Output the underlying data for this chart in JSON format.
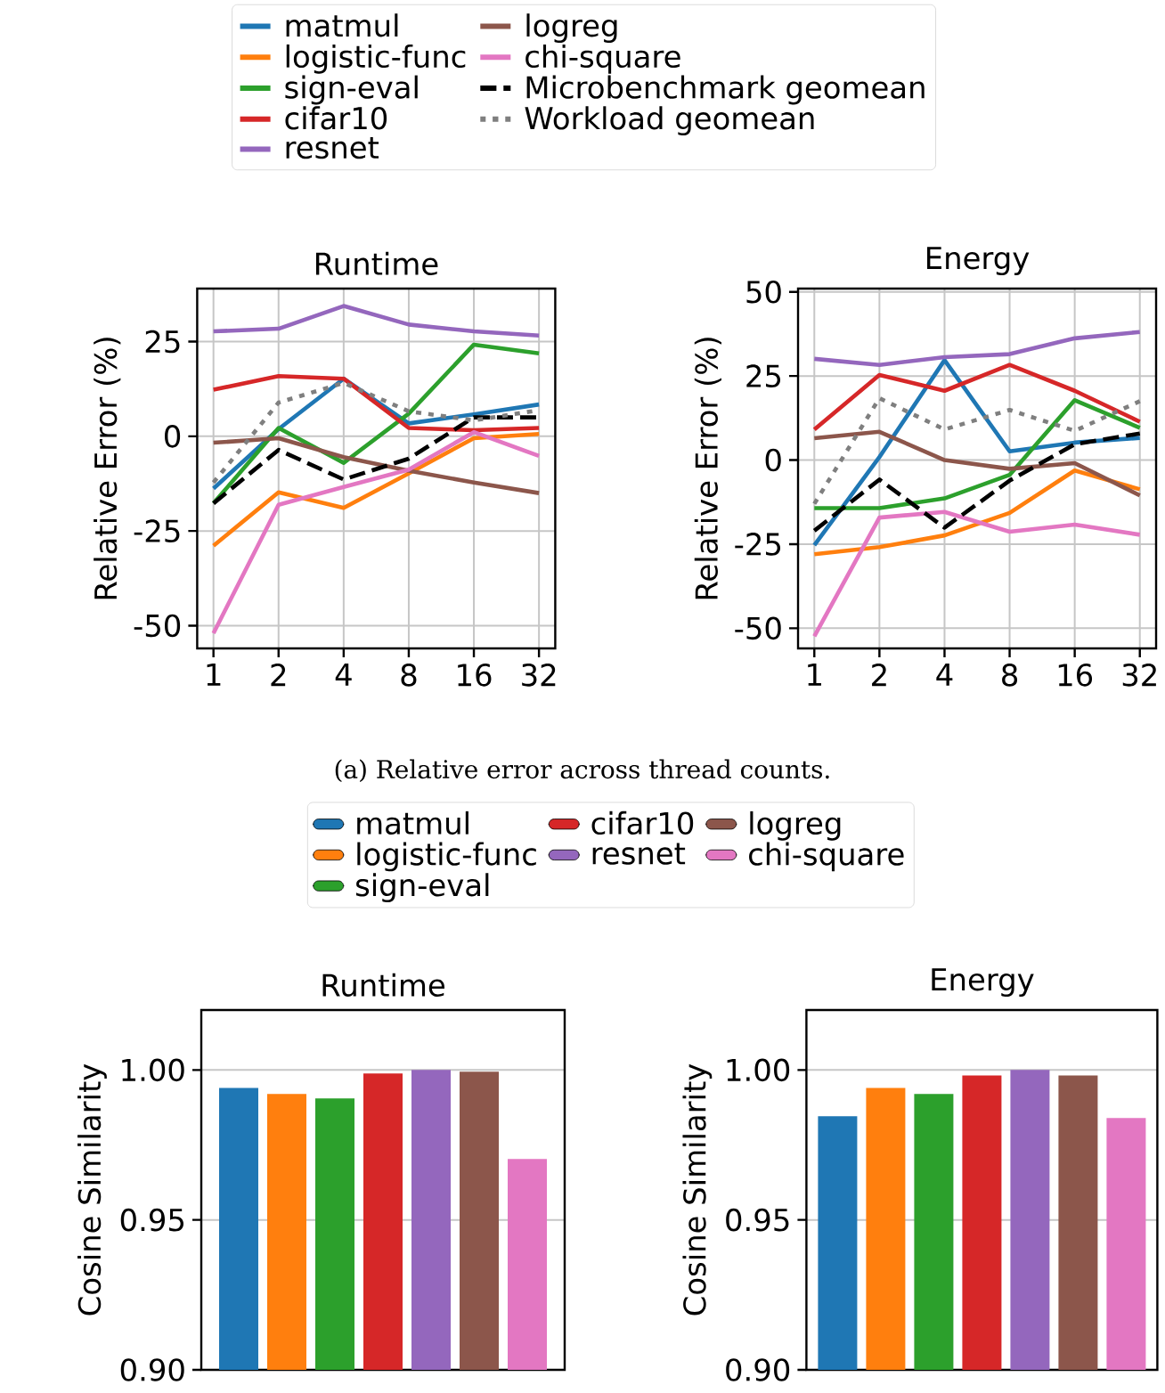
{
  "chart_data": [
    {
      "type": "line",
      "title": "Runtime",
      "ylabel": "Relative Error (%)",
      "categories": [
        "1",
        "2",
        "4",
        "8",
        "16",
        "32"
      ],
      "ylim": [
        -56,
        39
      ],
      "yticks": [
        -50,
        -25,
        0,
        25
      ],
      "grid": true,
      "legend": "top",
      "annotations": [
        "(a) Relative error across thread counts."
      ],
      "series": [
        {
          "name": "matmul",
          "color": "#1f77b4",
          "values": [
            -13.8,
            1.9,
            15.2,
            3.4,
            5.8,
            8.4
          ]
        },
        {
          "name": "logistic-func",
          "color": "#ff7f0e",
          "values": [
            -28.9,
            -14.8,
            -18.9,
            -9.8,
            -0.5,
            0.6
          ]
        },
        {
          "name": "sign-eval",
          "color": "#2ca02c",
          "values": [
            -17.7,
            2.2,
            -7,
            6,
            24.2,
            21.9
          ]
        },
        {
          "name": "cifar10",
          "color": "#d62728",
          "values": [
            12.3,
            15.9,
            15.2,
            2.2,
            1.6,
            2.2
          ]
        },
        {
          "name": "resnet",
          "color": "#9467bd",
          "values": [
            27.7,
            28.4,
            34.4,
            29.5,
            27.7,
            26.6
          ]
        },
        {
          "name": "logreg",
          "color": "#8c564b",
          "values": [
            -1.7,
            -0.5,
            -5.5,
            -9.1,
            -12.2,
            -15
          ]
        },
        {
          "name": "chi-square",
          "color": "#e377c2",
          "values": [
            -52,
            -18.1,
            -13.4,
            -8.8,
            1.1,
            -5.2
          ]
        },
        {
          "name": "Microbenchmark geomean",
          "color": "#000000",
          "line_style": "dashed",
          "values": [
            -17.7,
            -3.6,
            -11.4,
            -5.9,
            5,
            5
          ]
        },
        {
          "name": "Workload geomean",
          "color": "#7f7f7f",
          "line_style": "dotted",
          "values": [
            -12.2,
            8.9,
            14.1,
            6.6,
            4.2,
            6.9
          ]
        }
      ]
    },
    {
      "type": "line",
      "title": "Energy",
      "ylabel": "Relative Error (%)",
      "categories": [
        "1",
        "2",
        "4",
        "8",
        "16",
        "32"
      ],
      "ylim": [
        -56,
        51
      ],
      "yticks": [
        -50,
        -25,
        0,
        25,
        50
      ],
      "grid": true,
      "series": [
        {
          "color": "#1f77b4",
          "values": [
            -25.3,
            0.9,
            29.7,
            2.6,
            5.2,
            6.6
          ]
        },
        {
          "color": "#ff7f0e",
          "values": [
            -28,
            -25.9,
            -22.4,
            -15.7,
            -3.1,
            -8.7
          ]
        },
        {
          "color": "#2ca02c",
          "values": [
            -14.3,
            -14.3,
            -11.4,
            -4.4,
            17.8,
            9.6
          ]
        },
        {
          "color": "#d62728",
          "values": [
            9.1,
            25.3,
            20.6,
            28.3,
            20.6,
            11.4
          ]
        },
        {
          "color": "#9467bd",
          "values": [
            30.1,
            28.3,
            30.6,
            31.5,
            36.2,
            38.1
          ]
        },
        {
          "color": "#8c564b",
          "values": [
            6.5,
            8.4,
            0,
            -2.6,
            -0.9,
            -10.5
          ]
        },
        {
          "color": "#e377c2",
          "values": [
            -52.4,
            -17.1,
            -15.4,
            -21.3,
            -19.2,
            -22.2
          ]
        },
        {
          "color": "#000000",
          "line_style": "dashed",
          "values": [
            -21,
            -5.8,
            -20.1,
            -6.1,
            4.7,
            7.9
          ]
        },
        {
          "color": "#7f7f7f",
          "line_style": "dotted",
          "values": [
            -13,
            18.4,
            9.1,
            14.9,
            8.7,
            17.5
          ]
        }
      ]
    },
    {
      "type": "bar",
      "title": "Runtime",
      "ylabel": "Cosine Similarity",
      "categories": [
        null
      ],
      "ylim": [
        0.9,
        1.02
      ],
      "yticks": [
        {
          "value": 0.9,
          "label": "0.90"
        },
        {
          "value": 0.95,
          "label": "0.95"
        },
        {
          "value": 1.0,
          "label": "1.00"
        }
      ],
      "grid": "y",
      "legend": "top",
      "series": [
        {
          "name": "matmul",
          "color": "#1f77b4",
          "values": [
            0.994
          ]
        },
        {
          "name": "logistic-func",
          "color": "#ff7f0e",
          "values": [
            0.992
          ]
        },
        {
          "name": "sign-eval",
          "color": "#2ca02c",
          "values": [
            0.9905
          ]
        },
        {
          "name": "cifar10",
          "color": "#d62728",
          "values": [
            0.9988
          ]
        },
        {
          "name": "resnet",
          "color": "#9467bd",
          "values": [
            1.0
          ]
        },
        {
          "name": "logreg",
          "color": "#8c564b",
          "values": [
            0.9994
          ]
        },
        {
          "name": "chi-square",
          "color": "#e377c2",
          "values": [
            0.9703
          ]
        }
      ]
    },
    {
      "type": "bar",
      "title": "Energy",
      "ylabel": "Cosine Similarity",
      "categories": [
        null
      ],
      "ylim": [
        0.9,
        1.02
      ],
      "yticks": [
        {
          "value": 0.9,
          "label": "0.90"
        },
        {
          "value": 0.95,
          "label": "0.95"
        },
        {
          "value": 1.0,
          "label": "1.00"
        }
      ],
      "grid": "y",
      "series": [
        {
          "color": "#1f77b4",
          "values": [
            0.9846
          ]
        },
        {
          "color": "#ff7f0e",
          "values": [
            0.994
          ]
        },
        {
          "color": "#2ca02c",
          "values": [
            0.992
          ]
        },
        {
          "color": "#d62728",
          "values": [
            0.9982
          ]
        },
        {
          "color": "#9467bd",
          "values": [
            1.0
          ]
        },
        {
          "color": "#8c564b",
          "values": [
            0.9982
          ]
        },
        {
          "color": "#e377c2",
          "values": [
            0.984
          ]
        }
      ]
    }
  ]
}
